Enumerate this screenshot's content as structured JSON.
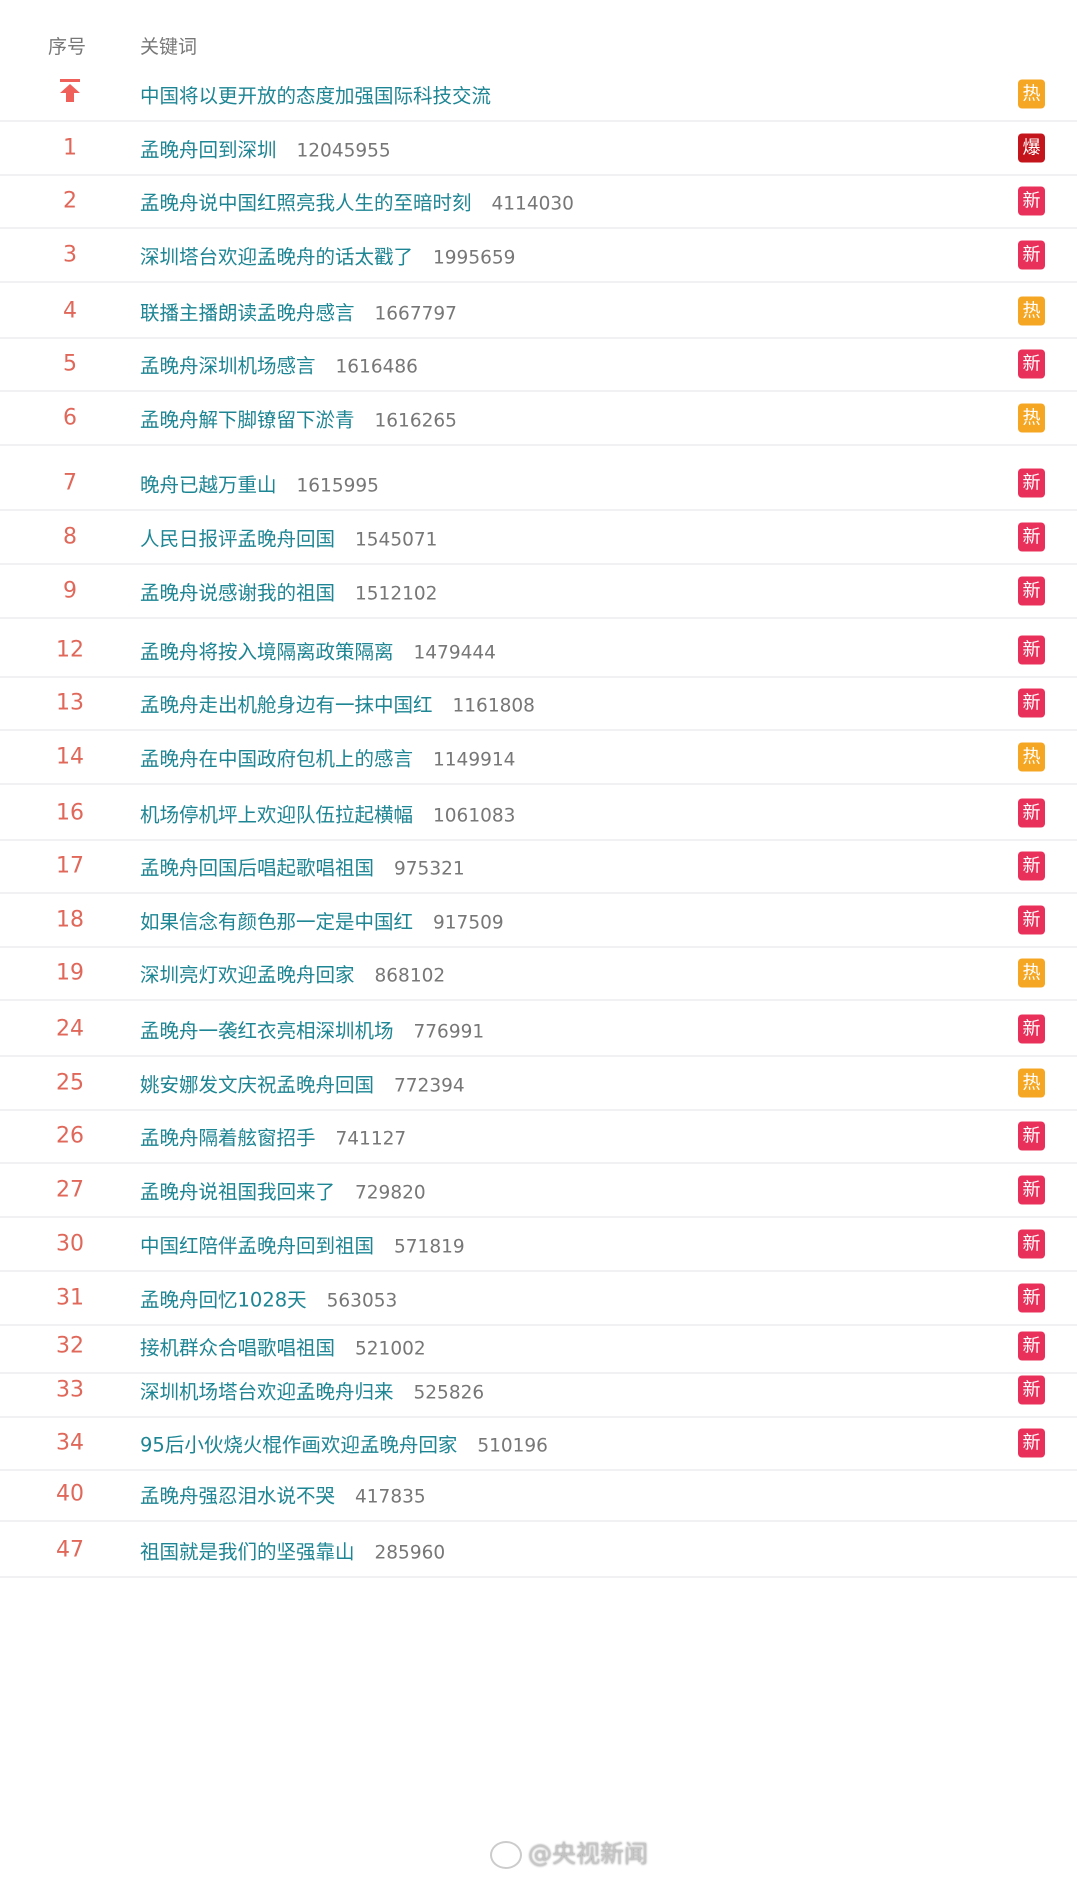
{
  "header": {
    "rank_label": "序号",
    "keyword_label": "关键词"
  },
  "colors": {
    "hot": "#f5a623",
    "new": "#e8305a",
    "boom": "#c4151c",
    "rank": "#e0685a",
    "keyword": "#1d8593"
  },
  "badges": {
    "hot": "热",
    "new": "新",
    "boom": "爆"
  },
  "pinned": {
    "icon": "pin-top-icon",
    "keyword": "中国将以更开放的态度加强国际科技交流",
    "badge": "hot"
  },
  "rows": [
    {
      "rank": "1",
      "keyword": "孟晚舟回到深圳",
      "count": "12045955",
      "badge": "boom"
    },
    {
      "rank": "2",
      "keyword": "孟晚舟说中国红照亮我人生的至暗时刻",
      "count": "4114030",
      "badge": "new"
    },
    {
      "rank": "3",
      "keyword": "深圳塔台欢迎孟晚舟的话太戳了",
      "count": "1995659",
      "badge": "new"
    },
    {
      "rank": "4",
      "keyword": "联播主播朗读孟晚舟感言",
      "count": "1667797",
      "badge": "hot"
    },
    {
      "rank": "5",
      "keyword": "孟晚舟深圳机场感言",
      "count": "1616486",
      "badge": "new"
    },
    {
      "rank": "6",
      "keyword": "孟晚舟解下脚镣留下淤青",
      "count": "1616265",
      "badge": "hot"
    },
    {
      "rank": "7",
      "keyword": "晚舟已越万重山",
      "count": "1615995",
      "badge": "new"
    },
    {
      "rank": "8",
      "keyword": "人民日报评孟晚舟回国",
      "count": "1545071",
      "badge": "new"
    },
    {
      "rank": "9",
      "keyword": "孟晚舟说感谢我的祖国",
      "count": "1512102",
      "badge": "new"
    },
    {
      "rank": "12",
      "keyword": "孟晚舟将按入境隔离政策隔离",
      "count": "1479444",
      "badge": "new"
    },
    {
      "rank": "13",
      "keyword": "孟晚舟走出机舱身边有一抹中国红",
      "count": "1161808",
      "badge": "new"
    },
    {
      "rank": "14",
      "keyword": "孟晚舟在中国政府包机上的感言",
      "count": "1149914",
      "badge": "hot"
    },
    {
      "rank": "16",
      "keyword": "机场停机坪上欢迎队伍拉起横幅",
      "count": "1061083",
      "badge": "new"
    },
    {
      "rank": "17",
      "keyword": "孟晚舟回国后唱起歌唱祖国",
      "count": "975321",
      "badge": "new"
    },
    {
      "rank": "18",
      "keyword": "如果信念有颜色那一定是中国红",
      "count": "917509",
      "badge": "new"
    },
    {
      "rank": "19",
      "keyword": "深圳亮灯欢迎孟晚舟回家",
      "count": "868102",
      "badge": "hot"
    },
    {
      "rank": "24",
      "keyword": "孟晚舟一袭红衣亮相深圳机场",
      "count": "776991",
      "badge": "new"
    },
    {
      "rank": "25",
      "keyword": "姚安娜发文庆祝孟晚舟回国",
      "count": "772394",
      "badge": "hot"
    },
    {
      "rank": "26",
      "keyword": "孟晚舟隔着舷窗招手",
      "count": "741127",
      "badge": "new"
    },
    {
      "rank": "27",
      "keyword": "孟晚舟说祖国我回来了",
      "count": "729820",
      "badge": "new"
    },
    {
      "rank": "30",
      "keyword": "中国红陪伴孟晚舟回到祖国",
      "count": "571819",
      "badge": "new"
    },
    {
      "rank": "31",
      "keyword": "孟晚舟回忆1028天",
      "count": "563053",
      "badge": "new"
    },
    {
      "rank": "32",
      "keyword": "接机群众合唱歌唱祖国",
      "count": "521002",
      "badge": "new"
    },
    {
      "rank": "33",
      "keyword": "深圳机场塔台欢迎孟晚舟归来",
      "count": "525826",
      "badge": "new"
    },
    {
      "rank": "34",
      "keyword": "95后小伙烧火棍作画欢迎孟晚舟回家",
      "count": "510196",
      "badge": "new"
    },
    {
      "rank": "40",
      "keyword": "孟晚舟强忍泪水说不哭",
      "count": "417835",
      "badge": ""
    },
    {
      "rank": "47",
      "keyword": "祖国就是我们的坚强靠山",
      "count": "285960",
      "badge": ""
    }
  ],
  "watermark": "@央视新闻"
}
